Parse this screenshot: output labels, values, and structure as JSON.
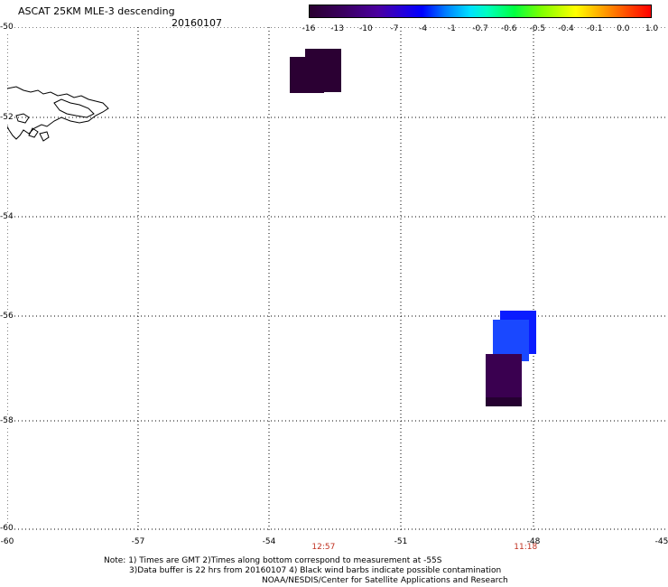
{
  "header": {
    "title": "ASCAT 25KM MLE-3 descending",
    "date": "20160107"
  },
  "colorbar": {
    "labels": [
      "-16",
      "-13",
      "-10",
      "-7",
      "-4",
      "-1",
      "-0.7",
      "-0.6",
      "-0.5",
      "-0.4",
      "-0.1",
      "0.0",
      "1.0"
    ]
  },
  "map": {
    "lat_labels": [
      "-50",
      "-52",
      "-54",
      "-56",
      "-58",
      "-60"
    ],
    "lon_labels": [
      "-60",
      "-57",
      "-54",
      "-51",
      "-48",
      "-45"
    ],
    "times": [
      {
        "label": "12:57",
        "lon": -52.8
      },
      {
        "label": "11:18",
        "lon": -48.2
      }
    ],
    "colors": {
      "dark_purple": "#2b0033",
      "purple": "#3a0050",
      "blue": "#0a1cff",
      "blue2": "#1a48ff",
      "time_red": "#c03020"
    }
  },
  "notes": {
    "line1": "Note: 1) Times are GMT 2)Times along bottom correspond to measurement at -55S",
    "line2": "3)Data buffer is 22 hrs from 20160107 4) Black wind barbs indicate possible contamination",
    "line3": "NOAA/NESDIS/Center for Satellite Applications and Research"
  }
}
